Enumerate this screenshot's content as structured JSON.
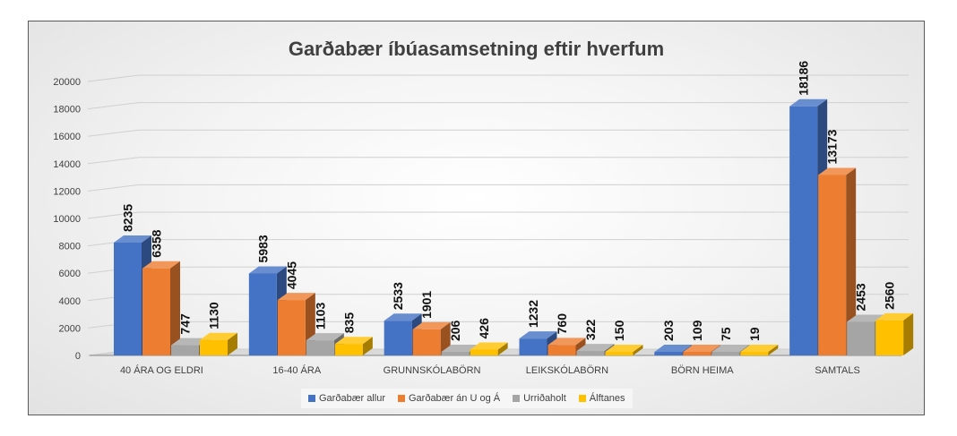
{
  "chart_data": {
    "type": "bar",
    "title": "Garðabær íbúasamsetning eftir hverfum",
    "categories": [
      "40 ÁRA OG ELDRI",
      "16-40 ÁRA",
      "GRUNNSKÓLABÖRN",
      "LEIKSKÓLABÖRN",
      "BÖRN HEIMA",
      "SAMTALS"
    ],
    "series": [
      {
        "name": "Garðabær allur",
        "color": "#4472C4",
        "values": [
          8235,
          5983,
          2533,
          1232,
          203,
          18186
        ]
      },
      {
        "name": "Garðabær án U og Á",
        "color": "#ED7D31",
        "values": [
          6358,
          4045,
          1901,
          760,
          109,
          13173
        ]
      },
      {
        "name": "Urriðaholt",
        "color": "#A5A5A5",
        "values": [
          747,
          1103,
          206,
          322,
          75,
          2453
        ]
      },
      {
        "name": "Álftanes",
        "color": "#FFC000",
        "values": [
          1130,
          835,
          426,
          150,
          19,
          2560
        ]
      }
    ],
    "yticks": [
      "0",
      "2000",
      "4000",
      "6000",
      "8000",
      "10000",
      "12000",
      "14000",
      "16000",
      "18000",
      "20000"
    ],
    "ylim": [
      0,
      20000
    ],
    "grid": true,
    "legend": "bottom",
    "style": "3d-clustered-column"
  }
}
